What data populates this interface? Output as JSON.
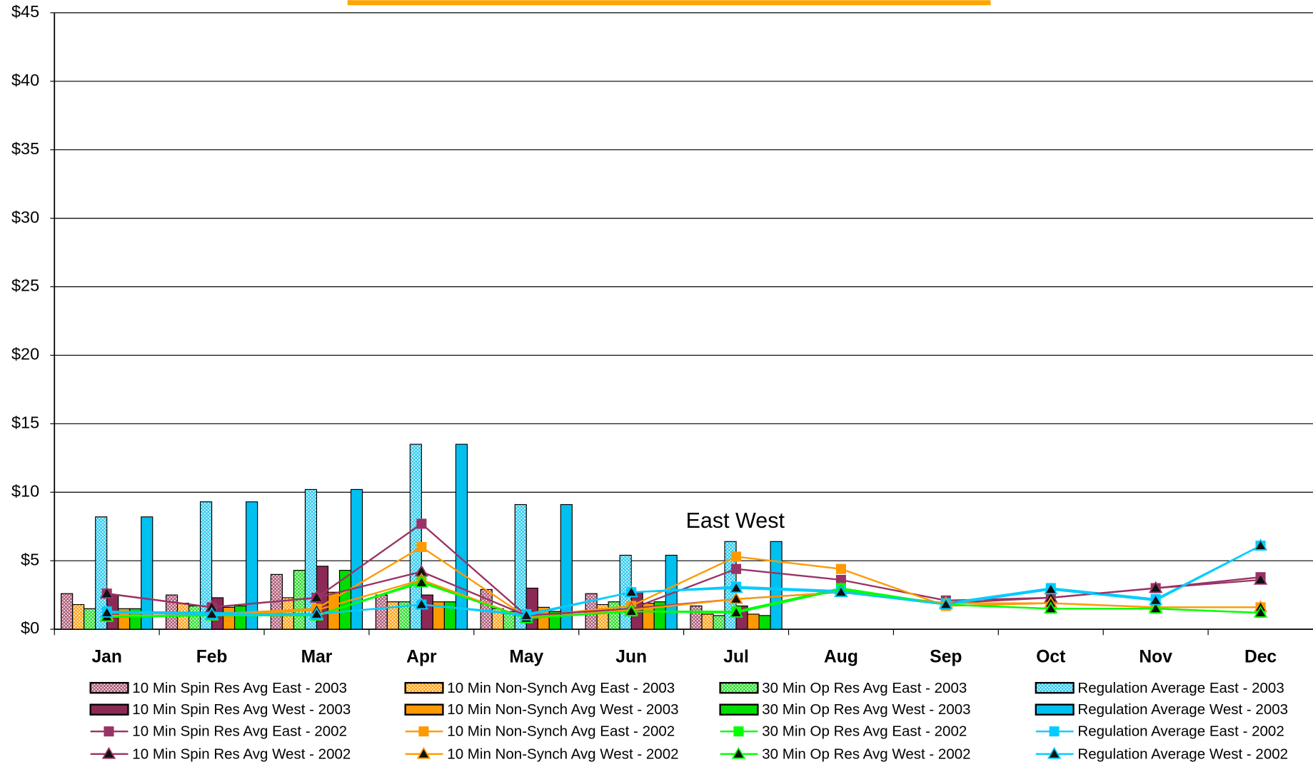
{
  "chart_data": {
    "type": "bar",
    "annotation": "East West",
    "categories": [
      "Jan",
      "Feb",
      "Mar",
      "Apr",
      "May",
      "Jun",
      "Jul",
      "Aug",
      "Sep",
      "Oct",
      "Nov",
      "Dec"
    ],
    "ylim": [
      0,
      45
    ],
    "yticks": [
      {
        "value": 0,
        "label": "$0"
      },
      {
        "value": 5,
        "label": "$5"
      },
      {
        "value": 10,
        "label": "$10"
      },
      {
        "value": 15,
        "label": "$15"
      },
      {
        "value": 20,
        "label": "$20"
      },
      {
        "value": 25,
        "label": "$25"
      },
      {
        "value": 30,
        "label": "$30"
      },
      {
        "value": 35,
        "label": "$35"
      },
      {
        "value": 40,
        "label": "$40"
      },
      {
        "value": 45,
        "label": "$45"
      }
    ],
    "grid": true,
    "legend": "bottom",
    "series": [
      {
        "name": "10 Min Spin Res Avg East - 2003",
        "color": "#b0607a",
        "style": "bar",
        "pattern": "hatched",
        "values": [
          2.6,
          2.5,
          4.0,
          2.5,
          2.9,
          2.6,
          1.7,
          null,
          null,
          null,
          null,
          null
        ]
      },
      {
        "name": "10 Min Non-Synch Avg East - 2003",
        "color": "#ffa31a",
        "style": "bar",
        "pattern": "hatched",
        "values": [
          1.8,
          1.9,
          2.3,
          2.0,
          1.5,
          1.8,
          1.1,
          null,
          null,
          null,
          null,
          null
        ]
      },
      {
        "name": "30 Min Op Res Avg East - 2003",
        "color": "#33e033",
        "style": "bar",
        "pattern": "hatched",
        "values": [
          1.5,
          1.7,
          4.3,
          2.0,
          1.3,
          2.0,
          1.0,
          null,
          null,
          null,
          null,
          null
        ]
      },
      {
        "name": "Regulation Average East - 2003",
        "color": "#33ccf0",
        "style": "bar",
        "pattern": "hatched",
        "values": [
          8.2,
          9.3,
          10.2,
          13.5,
          9.1,
          5.4,
          6.4,
          null,
          null,
          null,
          null,
          null
        ]
      },
      {
        "name": "10 Min Spin Res Avg West - 2003",
        "color": "#8b2a55",
        "style": "bar",
        "pattern": "solid",
        "values": [
          2.5,
          2.3,
          4.6,
          2.5,
          3.0,
          2.7,
          1.7,
          null,
          null,
          null,
          null,
          null
        ]
      },
      {
        "name": "10 Min Non-Synch Avg West - 2003",
        "color": "#ff9900",
        "style": "bar",
        "pattern": "solid",
        "values": [
          1.5,
          1.6,
          2.7,
          2.0,
          1.6,
          1.9,
          1.1,
          null,
          null,
          null,
          null,
          null
        ]
      },
      {
        "name": "30 Min Op Res Avg West - 2003",
        "color": "#00dd00",
        "style": "bar",
        "pattern": "solid",
        "values": [
          1.5,
          1.7,
          4.3,
          2.0,
          1.3,
          2.0,
          1.0,
          null,
          null,
          null,
          null,
          null
        ]
      },
      {
        "name": "Regulation Average West - 2003",
        "color": "#00c0f0",
        "style": "bar",
        "pattern": "solid",
        "values": [
          8.2,
          9.3,
          10.2,
          13.5,
          9.1,
          5.4,
          6.4,
          null,
          null,
          null,
          null,
          null
        ]
      },
      {
        "name": "10 Min Spin Res Avg East - 2002",
        "color": "#993366",
        "style": "line",
        "marker": "square",
        "values": [
          2.6,
          1.6,
          2.3,
          7.7,
          1.0,
          1.5,
          4.4,
          3.6,
          2.1,
          2.3,
          3.0,
          3.8
        ]
      },
      {
        "name": "10 Min Non-Synch Avg East - 2002",
        "color": "#ff9900",
        "style": "line",
        "marker": "square",
        "values": [
          1.2,
          1.1,
          1.5,
          6.0,
          0.9,
          1.7,
          5.3,
          4.4,
          1.7,
          1.9,
          1.6,
          1.6
        ]
      },
      {
        "name": "30 Min Op Res Avg East - 2002",
        "color": "#00ff00",
        "style": "line",
        "marker": "square",
        "values": [
          0.9,
          1.0,
          1.0,
          3.5,
          0.8,
          1.3,
          1.3,
          3.0,
          1.8,
          1.5,
          1.5,
          1.2
        ]
      },
      {
        "name": "Regulation Average East - 2002",
        "color": "#00ccff",
        "style": "line",
        "marker": "square",
        "values": [
          1.3,
          1.2,
          1.1,
          1.8,
          1.1,
          2.7,
          3.1,
          2.8,
          1.9,
          3.0,
          2.2,
          6.1
        ]
      },
      {
        "name": "10 Min Spin Res Avg West - 2002",
        "color": "#993366",
        "style": "line",
        "marker": "triangle",
        "values": [
          2.6,
          1.6,
          2.3,
          4.2,
          1.0,
          1.5,
          2.2,
          2.7,
          1.9,
          2.3,
          3.0,
          3.6
        ]
      },
      {
        "name": "10 Min Non-Synch Avg West - 2002",
        "color": "#ff9900",
        "style": "line",
        "marker": "triangle",
        "values": [
          1.0,
          1.0,
          1.4,
          3.6,
          0.8,
          1.4,
          2.2,
          2.7,
          1.9,
          1.9,
          1.6,
          1.6
        ]
      },
      {
        "name": "30 Min Op Res Avg West - 2002",
        "color": "#00ff00",
        "style": "line",
        "marker": "triangle",
        "values": [
          0.9,
          1.0,
          1.0,
          3.4,
          0.8,
          1.3,
          1.2,
          2.9,
          1.8,
          1.5,
          1.5,
          1.2
        ]
      },
      {
        "name": "Regulation Average West - 2002",
        "color": "#00ccff",
        "style": "line",
        "marker": "triangle",
        "values": [
          1.2,
          1.1,
          1.1,
          1.8,
          1.0,
          2.7,
          3.0,
          2.7,
          1.8,
          2.9,
          2.1,
          6.1
        ]
      }
    ]
  }
}
